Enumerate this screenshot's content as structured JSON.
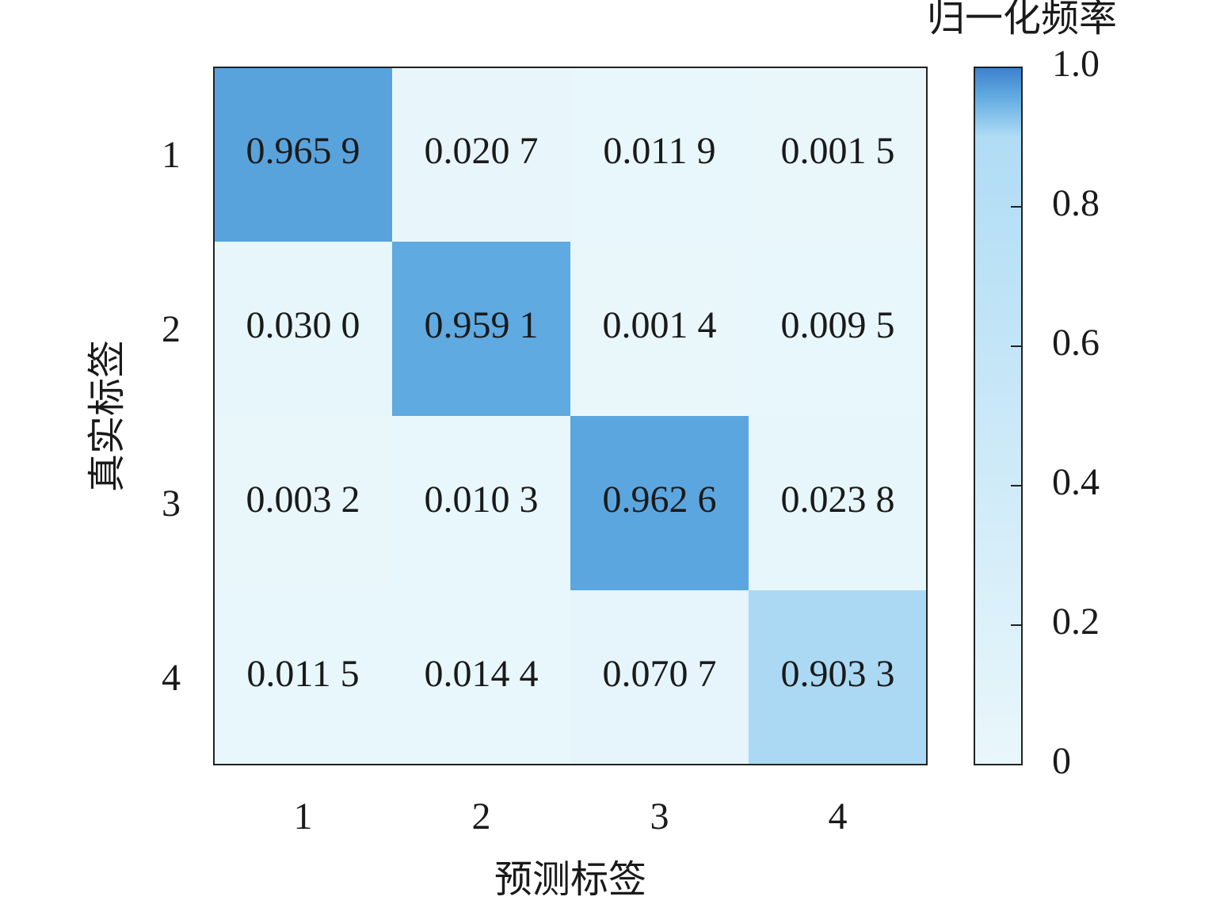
{
  "chart_data": {
    "type": "heatmap",
    "x": [
      "1",
      "2",
      "3",
      "4"
    ],
    "y": [
      "1",
      "2",
      "3",
      "4"
    ],
    "xlabel": "预测标签",
    "ylabel": "真实标签",
    "values": [
      [
        0.9659,
        0.0207,
        0.0119,
        0.0015
      ],
      [
        0.03,
        0.9591,
        0.0014,
        0.0095
      ],
      [
        0.0032,
        0.0103,
        0.9626,
        0.0238
      ],
      [
        0.0115,
        0.0144,
        0.0707,
        0.9033
      ]
    ],
    "value_labels": [
      [
        "0.965 9",
        "0.020 7",
        "0.011 9",
        "0.001 5"
      ],
      [
        "0.030 0",
        "0.959 1",
        "0.001 4",
        "0.009 5"
      ],
      [
        "0.003 2",
        "0.010 3",
        "0.962 6",
        "0.023 8"
      ],
      [
        "0.011 5",
        "0.014 4",
        "0.070 7",
        "0.903 3"
      ]
    ],
    "colorbar_label": "归一化频率",
    "clim": [
      0,
      1
    ],
    "cticks": [
      0,
      0.2,
      0.4,
      0.6,
      0.8,
      {
        "value": 1,
        "label": "1.0"
      }
    ],
    "colormap": [
      {
        "value": 0,
        "color": "#e9f7fb"
      },
      {
        "value": 0.9,
        "color": "#b0dcf5"
      },
      {
        "value": 0.96,
        "color": "#5ea9e0"
      },
      {
        "value": 1,
        "color": "#3f7fcc"
      }
    ]
  }
}
